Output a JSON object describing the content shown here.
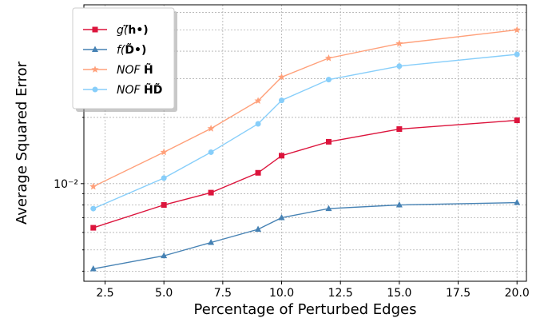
{
  "chart_data": {
    "type": "line",
    "xlabel": "Percentage of Perturbed Edges",
    "ylabel": "Average Squared Error",
    "x": [
      2,
      5,
      7,
      9,
      10,
      12,
      15,
      20
    ],
    "xlim": [
      1.6,
      20.4
    ],
    "xticks": [
      2.5,
      5.0,
      7.5,
      10.0,
      12.5,
      15.0,
      17.5,
      20.0
    ],
    "xtick_labels": [
      "2.5",
      "5.0",
      "7.5",
      "10.0",
      "12.5",
      "15.0",
      "17.5",
      "20.0"
    ],
    "yscale": "log",
    "ylim": [
      0.0036,
      0.065
    ],
    "ytick_major": [
      0.01
    ],
    "ytick_labels": [
      "10⁻²"
    ],
    "ytick_minor": [
      0.004,
      0.005,
      0.006,
      0.007,
      0.008,
      0.009,
      0.02,
      0.03,
      0.04,
      0.05,
      0.06
    ],
    "grid": true,
    "legend_position": "top-left",
    "series": [
      {
        "name_main": "g(",
        "name_rest": "̃h•)",
        "color": "#dc143c",
        "marker": "square",
        "values": [
          0.0063,
          0.008,
          0.0091,
          0.0112,
          0.0134,
          0.0155,
          0.0177,
          0.0194
        ]
      },
      {
        "name_main": "f(",
        "name_rest": "D̃•)",
        "color": "#4682b4",
        "marker": "triangle",
        "values": [
          0.0041,
          0.0047,
          0.0054,
          0.0062,
          0.007,
          0.0077,
          0.008,
          0.0082
        ]
      },
      {
        "name_main": "NOF",
        "name_rest": "H̃",
        "color": "#ffa07a",
        "marker": "star",
        "values": [
          0.0097,
          0.0139,
          0.0178,
          0.0238,
          0.0305,
          0.0372,
          0.0433,
          0.05
        ]
      },
      {
        "name_main": "NOF",
        "name_rest": "H̃D̃",
        "color": "#87cefa",
        "marker": "circle",
        "values": [
          0.0077,
          0.0106,
          0.0139,
          0.0187,
          0.0239,
          0.0297,
          0.0342,
          0.0387
        ]
      }
    ]
  }
}
